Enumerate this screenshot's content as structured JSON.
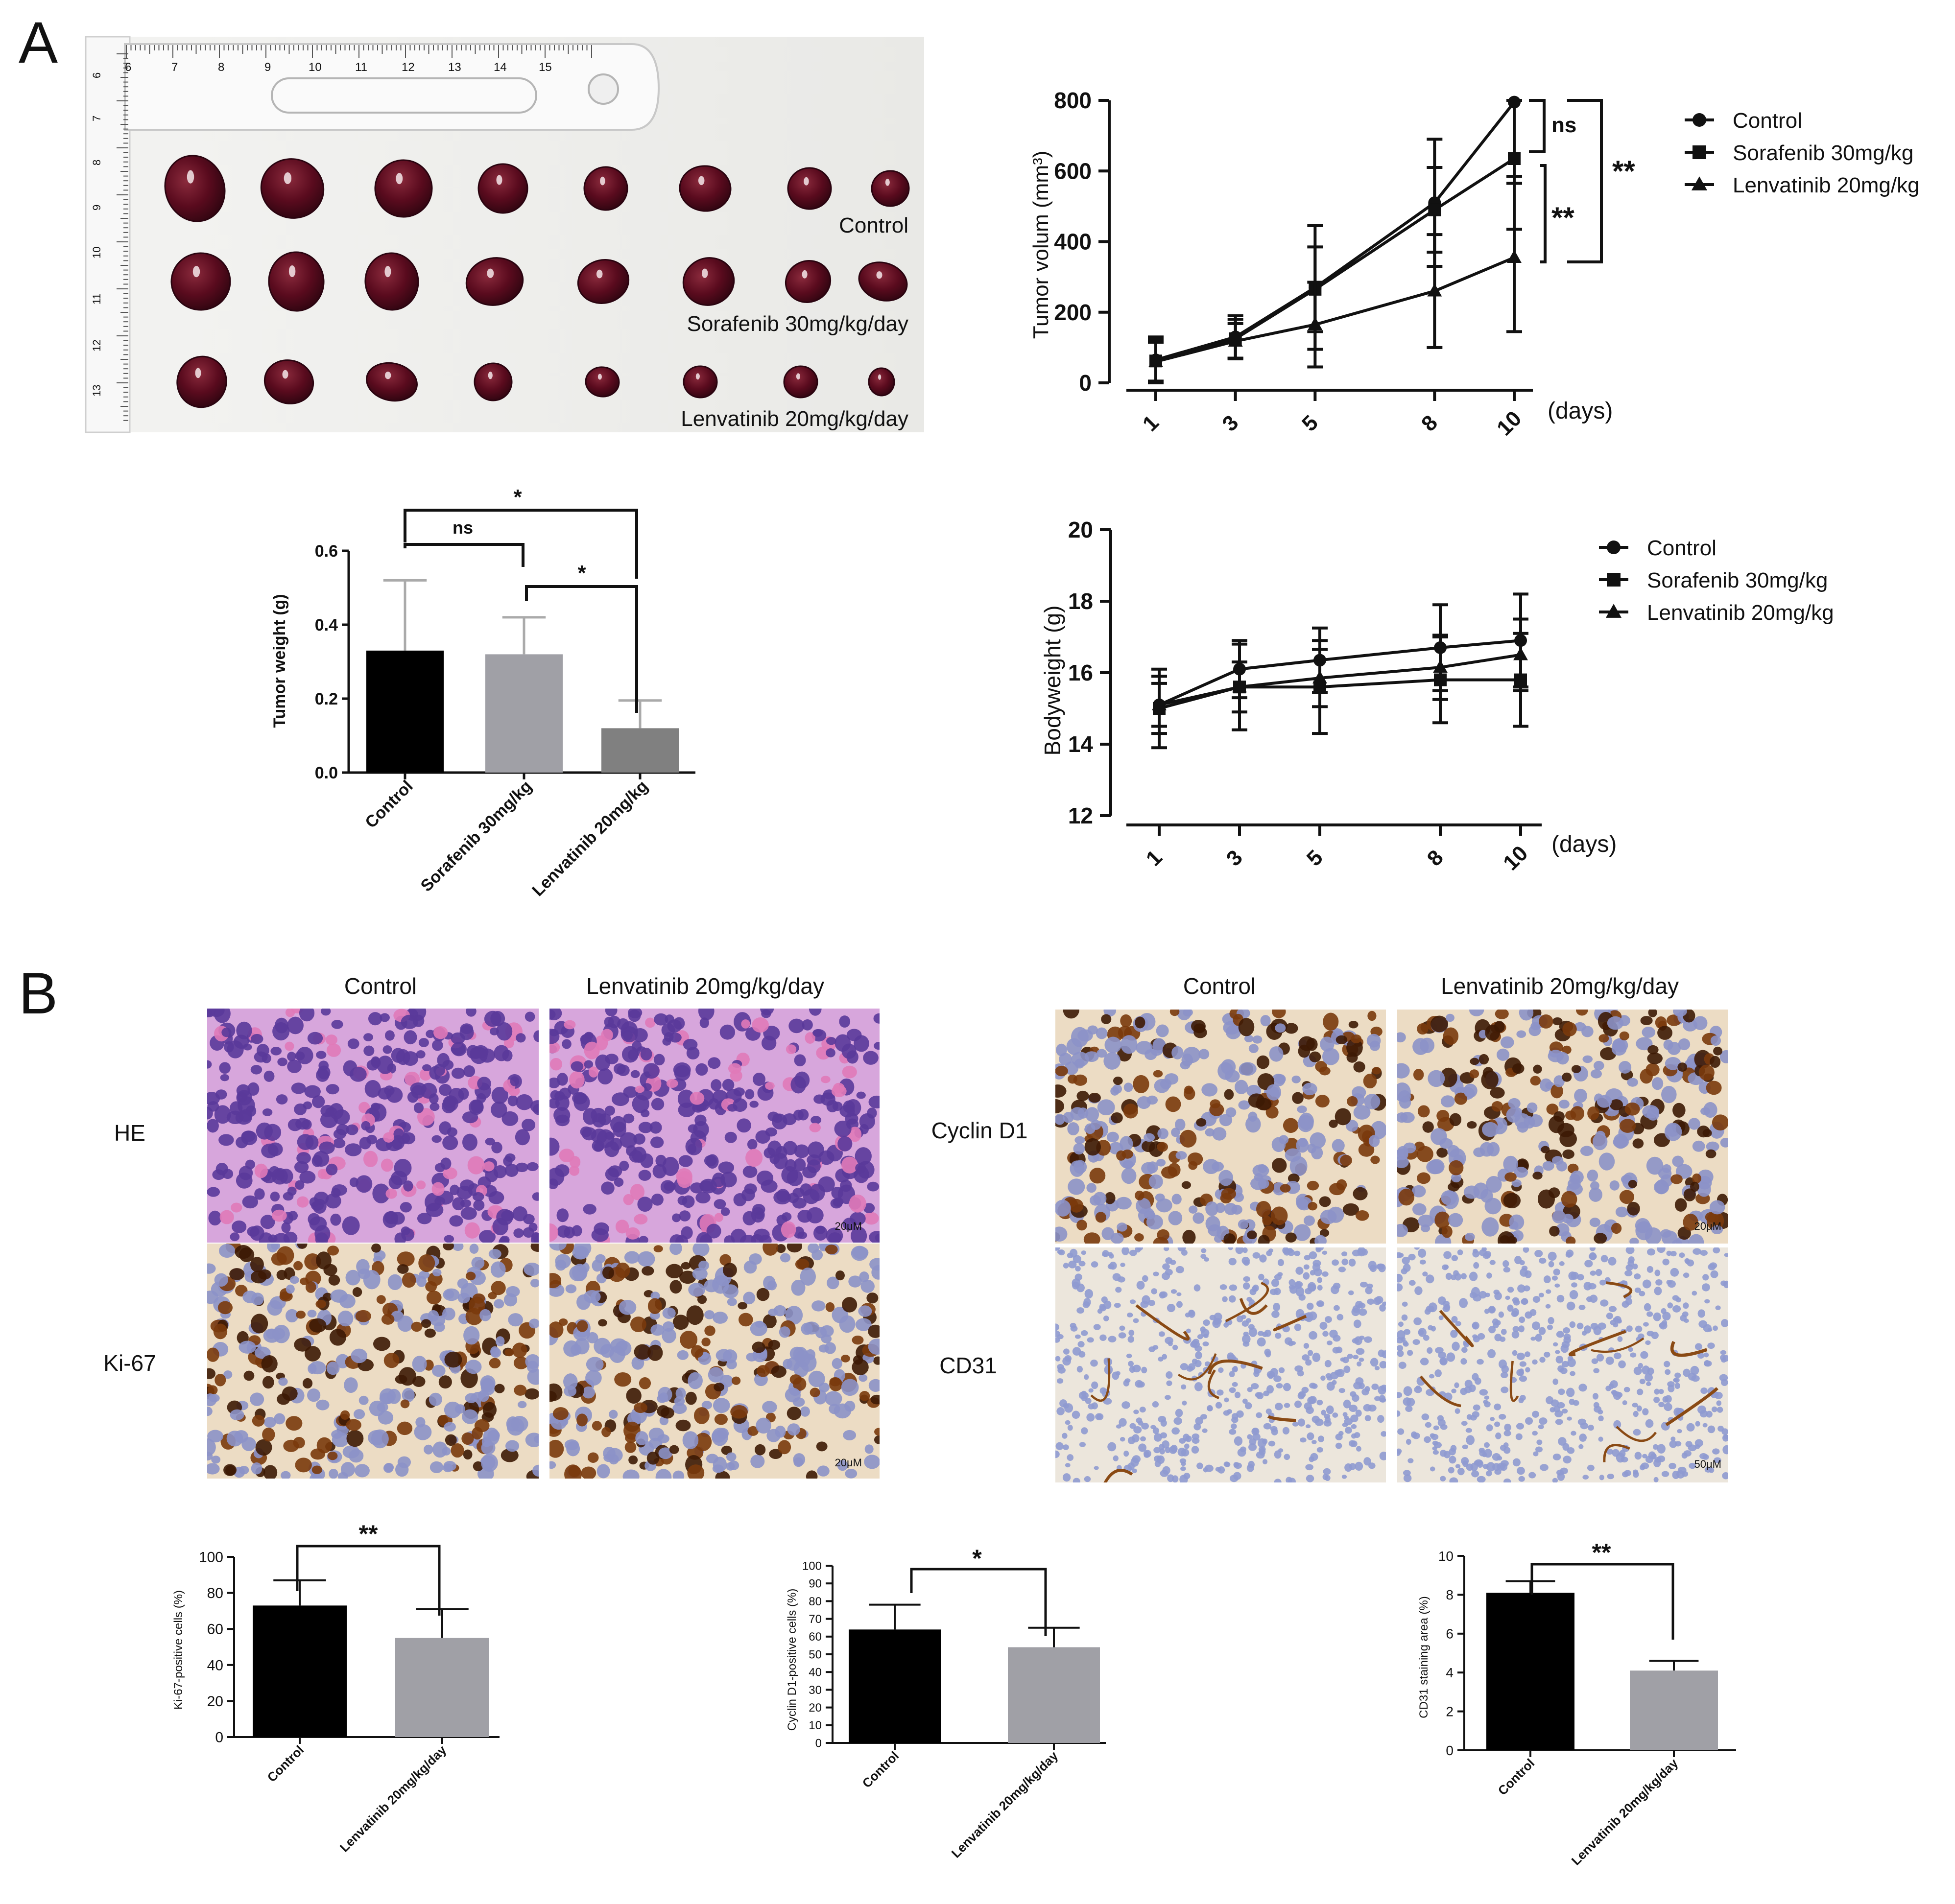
{
  "panel_labels": [
    "A",
    "B"
  ],
  "colors": {
    "axis": "#111111",
    "bar_control": "#000000",
    "bar_sorafenib": "#a0a0a6",
    "bar_lenvatinib": "#808080",
    "bar_gray": "#a0a0a6",
    "he_stain": "#c06ac8",
    "ihc_brown": "#6b3208",
    "ihc_bg": "#efe6d8",
    "tumor": "#5a0b1e"
  },
  "photo": {
    "labels": [
      "Control",
      "Sorafenib 30mg/kg/day",
      "Lenvatinib 20mg/kg/day"
    ],
    "ruler_ticks": [
      "6",
      "7",
      "8",
      "9",
      "10",
      "11",
      "12",
      "13",
      "14",
      "15"
    ],
    "ruler_side_ticks": [
      "6",
      "7",
      "8",
      "9",
      "10",
      "11",
      "12",
      "13"
    ]
  },
  "histology": {
    "col_headers_left": [
      "Control",
      "Lenvatinib 20mg/kg/day"
    ],
    "col_headers_right": [
      "Control",
      "Lenvatinib 20mg/kg/day"
    ],
    "row_labels_left": [
      "HE",
      "Ki-67"
    ],
    "row_labels_right": [
      "Cyclin D1",
      "CD31"
    ],
    "scale_bars": [
      "20μM",
      "20μM",
      "20μM",
      "50μM"
    ]
  },
  "chart_data": [
    {
      "id": "tumor-volume",
      "type": "line",
      "x": [
        "1",
        "3",
        "5",
        "8",
        "10"
      ],
      "xunit": "(days)",
      "ylabel": "Tumor volum (mm³)",
      "ylim": [
        0,
        800
      ],
      "yticks": [
        "0",
        "200",
        "400",
        "600",
        "800"
      ],
      "series": [
        {
          "name": "Control",
          "marker": "circle",
          "values": [
            65,
            130,
            270,
            510,
            795
          ],
          "err": [
            65,
            60,
            175,
            180,
            210
          ]
        },
        {
          "name": "Sorafenib 30mg/kg",
          "marker": "square",
          "values": [
            62,
            125,
            265,
            490,
            635
          ],
          "err": [
            60,
            55,
            120,
            120,
            200
          ]
        },
        {
          "name": "Lenvatinib 20mg/kg",
          "marker": "triangle",
          "values": [
            60,
            118,
            165,
            260,
            355
          ],
          "err": [
            55,
            50,
            120,
            160,
            210
          ]
        }
      ],
      "annotations": [
        "ns",
        "**",
        "**"
      ]
    },
    {
      "id": "tumor-weight",
      "type": "bar",
      "categories": [
        "Control",
        "Sorafenib 30mg/kg",
        "Lenvatinib 20mg/kg"
      ],
      "values": [
        0.33,
        0.32,
        0.12
      ],
      "err": [
        0.19,
        0.1,
        0.075
      ],
      "ylabel": "Tumor weight (g)",
      "ylim": [
        0,
        0.6
      ],
      "yticks": [
        "0.0",
        "0.2",
        "0.4",
        "0.6"
      ],
      "annotations": [
        "*",
        "ns",
        "*"
      ]
    },
    {
      "id": "bodyweight",
      "type": "line",
      "x": [
        "1",
        "3",
        "5",
        "8",
        "10"
      ],
      "xunit": "(days)",
      "ylabel": "Bodyweight (g)",
      "ylim": [
        12,
        20
      ],
      "yticks": [
        "12",
        "14",
        "16",
        "18",
        "20"
      ],
      "series": [
        {
          "name": "Control",
          "marker": "circle",
          "values": [
            15.1,
            16.1,
            16.35,
            16.7,
            16.9
          ],
          "err": [
            0.8,
            0.8,
            0.9,
            1.2,
            1.3
          ]
        },
        {
          "name": "Sorafenib 30mg/kg",
          "marker": "square",
          "values": [
            15.0,
            15.6,
            15.6,
            15.8,
            15.8
          ],
          "err": [
            1.1,
            1.2,
            1.3,
            1.2,
            1.3
          ]
        },
        {
          "name": "Lenvatinib 20mg/kg",
          "marker": "triangle",
          "values": [
            15.1,
            15.6,
            15.85,
            16.15,
            16.5
          ],
          "err": [
            0.6,
            0.7,
            0.8,
            0.9,
            1.0
          ]
        }
      ]
    },
    {
      "id": "ki67",
      "type": "bar",
      "categories": [
        "Control",
        "Lenvatinib 20mg/kg/day"
      ],
      "values": [
        73,
        55
      ],
      "err": [
        14,
        16
      ],
      "ylabel": "Ki-67-positive cells (%)",
      "ylim": [
        0,
        100
      ],
      "yticks": [
        "0",
        "20",
        "40",
        "60",
        "80",
        "100"
      ],
      "annotations": [
        "**"
      ]
    },
    {
      "id": "cyclin-d1",
      "type": "bar",
      "categories": [
        "Control",
        "Lenvatinib 20mg/kg/day"
      ],
      "values": [
        64,
        54
      ],
      "err": [
        14,
        11
      ],
      "ylabel": "Cyclin D1-positive cells (%)",
      "ylim": [
        0,
        100
      ],
      "yticks": [
        "0",
        "10",
        "20",
        "30",
        "40",
        "50",
        "60",
        "70",
        "80",
        "90",
        "100"
      ],
      "annotations": [
        "*"
      ]
    },
    {
      "id": "cd31",
      "type": "bar",
      "categories": [
        "Control",
        "Lenvatinib 20mg/kg/day"
      ],
      "values": [
        8.1,
        4.1
      ],
      "err": [
        0.6,
        0.5
      ],
      "ylabel": "CD31 staining area (%)",
      "ylim": [
        0,
        10
      ],
      "yticks": [
        "0",
        "2",
        "4",
        "6",
        "8",
        "10"
      ],
      "annotations": [
        "**"
      ]
    }
  ]
}
